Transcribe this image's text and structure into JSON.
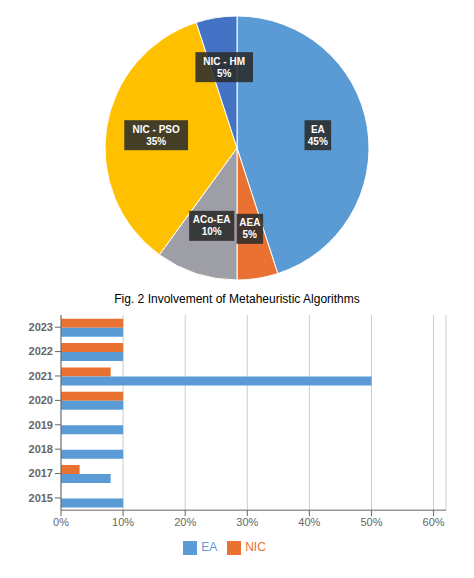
{
  "chart_data": [
    {
      "type": "pie",
      "categories": [
        "EA",
        "AEA",
        "ACo-EA",
        "NIC - PSO",
        "NIC - HM"
      ],
      "values": [
        45,
        5,
        10,
        35,
        5
      ],
      "value_labels": [
        "45%",
        "5%",
        "10%",
        "35%",
        "5%"
      ],
      "colors": [
        "#5B9BD5",
        "#E97132",
        "#9E9EA6",
        "#FFC000",
        "#4472C4"
      ],
      "data_labels": true
    },
    {
      "type": "bar",
      "title": "Fig. 2 Involvement of Metaheuristic Algorithms",
      "orientation": "horizontal",
      "categories": [
        "2015",
        "2017",
        "2018",
        "2019",
        "2020",
        "2021",
        "2022",
        "2023"
      ],
      "series": [
        {
          "name": "NIC",
          "color": "#E97132",
          "values": [
            0,
            0.03,
            0,
            0,
            0.1,
            0.08,
            0.1,
            0.1
          ]
        },
        {
          "name": "EA",
          "color": "#5B9BD5",
          "values": [
            0.1,
            0.08,
            0.1,
            0.1,
            0.1,
            0.5,
            0.1,
            0.1
          ]
        }
      ],
      "xlim": [
        0,
        0.62
      ],
      "xticks": [
        {
          "value": 0,
          "label": "0%"
        },
        {
          "value": 0.1,
          "label": "10%"
        },
        {
          "value": 0.2,
          "label": "20%"
        },
        {
          "value": 0.3,
          "label": "30%"
        },
        {
          "value": 0.4,
          "label": "40%"
        },
        {
          "value": 0.5,
          "label": "50%"
        },
        {
          "value": 0.6,
          "label": "60%"
        }
      ],
      "grid": true,
      "legend": "bottom"
    }
  ]
}
